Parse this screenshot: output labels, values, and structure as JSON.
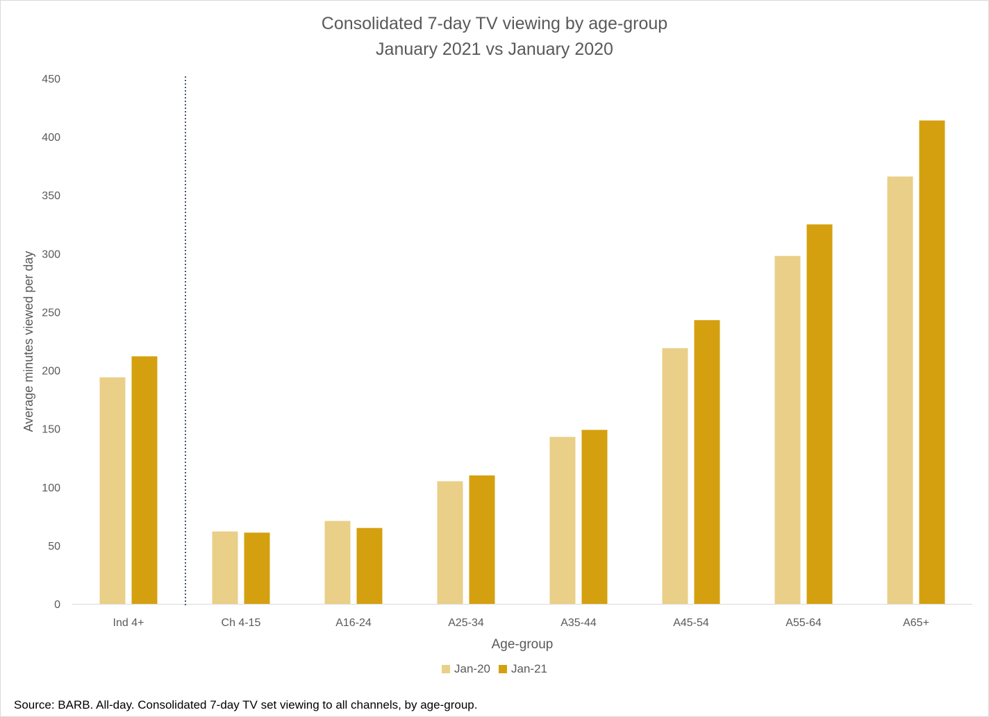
{
  "chart_data": {
    "type": "bar",
    "title": "Consolidated 7-day TV viewing by age-group",
    "subtitle": "January 2021 vs January 2020",
    "xlabel": "Age-group",
    "ylabel": "Average minutes viewed per day",
    "ylim": [
      0,
      450
    ],
    "yticks": [
      0,
      50,
      100,
      150,
      200,
      250,
      300,
      350,
      400,
      450
    ],
    "categories": [
      "Ind 4+",
      "Ch 4-15",
      "A16-24",
      "A25-34",
      "A35-44",
      "A45-54",
      "A55-64",
      "A65+"
    ],
    "series": [
      {
        "name": "Jan-20",
        "color": "#E9CF87",
        "values": [
          194,
          62,
          71,
          105,
          143,
          219,
          298,
          366
        ]
      },
      {
        "name": "Jan-21",
        "color": "#D5A00F",
        "values": [
          212,
          61,
          65,
          110,
          149,
          243,
          325,
          414
        ]
      }
    ],
    "grid": false,
    "legend": "bottom-center",
    "annotations": [
      "dotted separator between Ind 4+ and Ch 4-15"
    ]
  },
  "source": "Source: BARB. All-day. Consolidated 7-day TV set viewing to all channels, by age-group."
}
